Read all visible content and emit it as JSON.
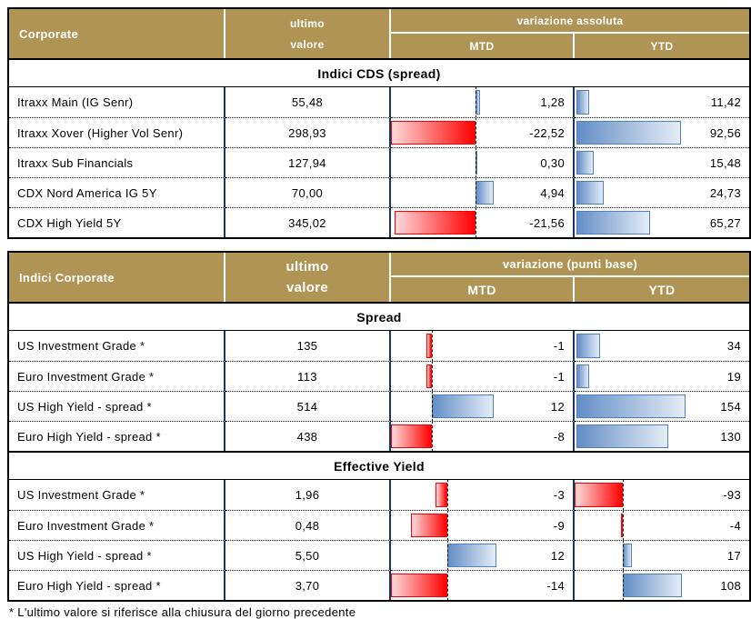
{
  "footnote": "* L'ultimo valore si riferisce alla chiusura del giorno precedente",
  "colors": {
    "header_bg": "#b09456",
    "table_border": "#17375e",
    "bar_positive_border": "#4f81bd",
    "bar_positive_fill": "#638ec6",
    "bar_negative_border": "#ff0000",
    "bar_negative_fill": "#ff0000"
  },
  "table1": {
    "title": "Corporate",
    "value_header_line1": "ultimo",
    "value_header_line2": "valore",
    "variation_header": "variazione assoluta",
    "mtd_label": "MTD",
    "ytd_label": "YTD",
    "sections": [
      {
        "name": "Indici CDS (spread)",
        "mtd_scale": {
          "axis_frac": 0.465,
          "unit_frac": 0.0206,
          "show_axis": true
        },
        "ytd_scale": {
          "axis_frac": 0.008,
          "unit_frac": 0.00647,
          "show_axis": false
        },
        "rows": [
          {
            "label": "Itraxx Main (IG Senr)",
            "value": "55,48",
            "mtd": 1.28,
            "mtd_text": "1,28",
            "ytd": 11.42,
            "ytd_text": "11,42"
          },
          {
            "label": "Itraxx Xover (Higher Vol Senr)",
            "value": "298,93",
            "mtd": -22.52,
            "mtd_text": "-22,52",
            "ytd": 92.56,
            "ytd_text": "92,56"
          },
          {
            "label": "Itraxx Sub Financials",
            "value": "127,94",
            "mtd": 0.3,
            "mtd_text": "0,30",
            "ytd": 15.48,
            "ytd_text": "15,48"
          },
          {
            "label": "CDX Nord America IG 5Y",
            "value": "70,00",
            "mtd": 4.94,
            "mtd_text": "4,94",
            "ytd": 24.73,
            "ytd_text": "24,73"
          },
          {
            "label": "CDX High Yield 5Y",
            "value": "345,02",
            "mtd": -21.56,
            "mtd_text": "-21,56",
            "ytd": 65.27,
            "ytd_text": "65,27"
          }
        ]
      }
    ]
  },
  "table2": {
    "title": "Indici Corporate",
    "value_header_line1": "ultimo",
    "value_header_line2": "valore",
    "variation_header": "variazione (punti base)",
    "mtd_label": "MTD",
    "ytd_label": "YTD",
    "sections": [
      {
        "name": "Spread",
        "mtd_scale": {
          "axis_frac": 0.223,
          "unit_frac": 0.0285,
          "show_axis": true
        },
        "ytd_scale": {
          "axis_frac": 0.008,
          "unit_frac": 0.00406,
          "show_axis": false
        },
        "rows": [
          {
            "label": "US Investment Grade *",
            "value": "135",
            "mtd": -1,
            "mtd_text": "-1",
            "ytd": 34,
            "ytd_text": "34"
          },
          {
            "label": "Euro Investment Grade *",
            "value": "113",
            "mtd": -1,
            "mtd_text": "-1",
            "ytd": 19,
            "ytd_text": "19"
          },
          {
            "label": "US High Yield  - spread *",
            "value": "514",
            "mtd": 12,
            "mtd_text": "12",
            "ytd": 154,
            "ytd_text": "154"
          },
          {
            "label": "Euro High Yield  - spread *",
            "value": "438",
            "mtd": -8,
            "mtd_text": "-8",
            "ytd": 130,
            "ytd_text": "130"
          }
        ]
      },
      {
        "name": "Effective Yield",
        "mtd_scale": {
          "axis_frac": 0.312,
          "unit_frac": 0.0223,
          "show_axis": true
        },
        "ytd_scale": {
          "axis_frac": 0.276,
          "unit_frac": 0.003125,
          "show_axis": true
        },
        "rows": [
          {
            "label": "US Investment Grade *",
            "value": "1,96",
            "mtd": -3,
            "mtd_text": "-3",
            "ytd": -93,
            "ytd_text": "-93"
          },
          {
            "label": "Euro Investment Grade *",
            "value": "0,48",
            "mtd": -9,
            "mtd_text": "-9",
            "ytd": -4,
            "ytd_text": "-4"
          },
          {
            "label": "US High Yield  - spread *",
            "value": "5,50",
            "mtd": 12,
            "mtd_text": "12",
            "ytd": 17,
            "ytd_text": "17"
          },
          {
            "label": "Euro High Yield  - spread *",
            "value": "3,70",
            "mtd": -14,
            "mtd_text": "-14",
            "ytd": 108,
            "ytd_text": "108"
          }
        ]
      }
    ]
  }
}
